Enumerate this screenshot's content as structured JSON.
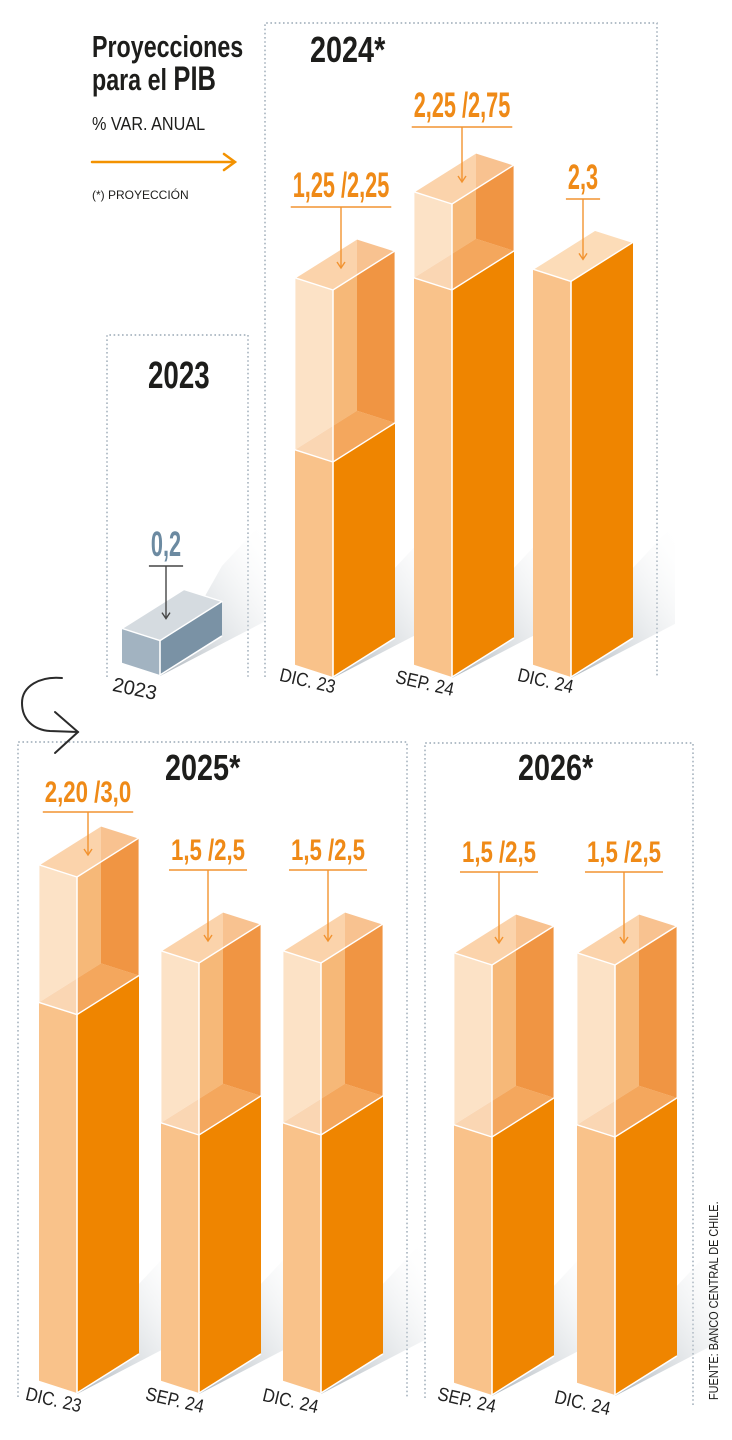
{
  "chart_data": {
    "type": "bar",
    "title": "Proyecciones para el PIB",
    "title_parts": {
      "line1": "Proyecciones",
      "line2": "para el",
      "emphasis": "PIB"
    },
    "subtitle": "% VAR. ANUAL",
    "xlabel": "",
    "ylabel": "% VAR. ANUAL",
    "note": "(*) PROYECCIÓN",
    "source": "FUENTE: BANCO CENTRAL DE CHILE.",
    "grid": false,
    "legend": "none",
    "panels": [
      {
        "title": "2023",
        "projected": false,
        "categories": [
          "2023"
        ],
        "bars": [
          {
            "category": "2023",
            "label": "0,2",
            "range": [
              0.2,
              0.2
            ]
          }
        ]
      },
      {
        "title": "2024*",
        "projected": true,
        "categories": [
          "DIC. 23",
          "SEP. 24",
          "DIC. 24"
        ],
        "bars": [
          {
            "category": "DIC. 23",
            "label": "1,25 /2,25",
            "range": [
              1.25,
              2.25
            ]
          },
          {
            "category": "SEP. 24",
            "label": "2,25 /2,75",
            "range": [
              2.25,
              2.75
            ]
          },
          {
            "category": "DIC. 24",
            "label": "2,3",
            "range": [
              2.3,
              2.3
            ]
          }
        ]
      },
      {
        "title": "2025*",
        "projected": true,
        "categories": [
          "DIC. 23",
          "SEP. 24",
          "DIC. 24"
        ],
        "bars": [
          {
            "category": "DIC. 23",
            "label": "2,20 /3,0",
            "range": [
              2.2,
              3.0
            ]
          },
          {
            "category": "SEP. 24",
            "label": "1,5 /2,5",
            "range": [
              1.5,
              2.5
            ]
          },
          {
            "category": "DIC. 24",
            "label": "1,5 /2,5",
            "range": [
              1.5,
              2.5
            ]
          }
        ]
      },
      {
        "title": "2026*",
        "projected": true,
        "categories": [
          "SEP. 24",
          "DIC. 24"
        ],
        "bars": [
          {
            "category": "SEP. 24",
            "label": "1,5 /2,5",
            "range": [
              1.5,
              2.5
            ]
          },
          {
            "category": "DIC. 24",
            "label": "1,5 /2,5",
            "range": [
              1.5,
              2.5
            ]
          }
        ]
      }
    ]
  },
  "colors": {
    "bar_accent": "#ef8500",
    "bar_light": "#f9c28a",
    "bar_top": "#fcdcb8",
    "range_back_left": "#f8c48d",
    "range_back_right": "#ef9241",
    "range_floor": "#f5ad66",
    "range_top": "#fcdcbb",
    "range_front_tint": "#f39a48",
    "base_gray": "#7a92a5",
    "base_gray_light": "#a2b3c1",
    "base_gray_top": "#d5dbe0",
    "label_orange": "#ef8a17",
    "label_gray": "#6c8aa1",
    "leader_orange": "#f29330",
    "leader_gray": "#454545",
    "title_arrow": "#f39200",
    "text_dark": "#1d1d1b",
    "frame": "#9aa8b5"
  }
}
